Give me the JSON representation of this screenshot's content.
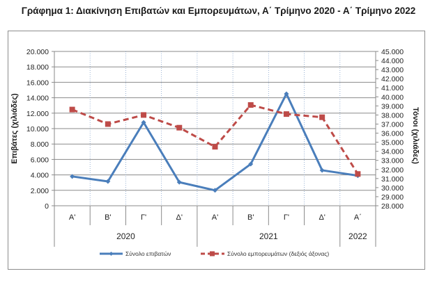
{
  "chart_data": {
    "type": "line",
    "title": "Γράφημα 1: Διακίνηση Επιβατών και Εμπορευμάτων, Α΄ Τρίμηνο 2020 - Α΄ Τρίμηνο 2022",
    "categories": [
      "Α'",
      "Β'",
      "Γ'",
      "Δ'",
      "Α'",
      "Β'",
      "Γ'",
      "Δ'",
      "Α΄"
    ],
    "groups": [
      {
        "label": "2020",
        "span": 4
      },
      {
        "label": "2021",
        "span": 4
      },
      {
        "label": "2022",
        "span": 1
      }
    ],
    "ylabel": "Επιβάτες  (χιλιάδες)",
    "y2label": "Τόνοι  (χιλιάδες)",
    "ylim": [
      0,
      20000
    ],
    "y2lim": [
      28000,
      45000
    ],
    "yticks": [
      "0",
      "2.000",
      "4.000",
      "6.000",
      "8.000",
      "10.000",
      "12.000",
      "14.000",
      "16.000",
      "18.000",
      "20.000"
    ],
    "y2ticks": [
      "28.000",
      "29.000",
      "30.000",
      "31.000",
      "32.000",
      "33.000",
      "34.000",
      "35.000",
      "36.000",
      "37.000",
      "38.000",
      "39.000",
      "40.000",
      "41.000",
      "42.000",
      "43.000",
      "44.000",
      "45.000"
    ],
    "grid": true,
    "legend_position": "bottom",
    "series": [
      {
        "name": "Σύνολο επιβατών",
        "axis": "left",
        "color": "#4a7ebb",
        "style": "solid",
        "marker": "diamond",
        "values": [
          3800,
          3150,
          10800,
          3050,
          2000,
          5400,
          14500,
          4600,
          3900
        ]
      },
      {
        "name": "Σύνολο εμπορευμάτων (δεξιός άξονας)",
        "axis": "right",
        "color": "#be4b48",
        "style": "dashed",
        "marker": "square",
        "values": [
          38600,
          37000,
          38000,
          36600,
          34500,
          39100,
          38100,
          37750,
          31500
        ]
      }
    ]
  }
}
